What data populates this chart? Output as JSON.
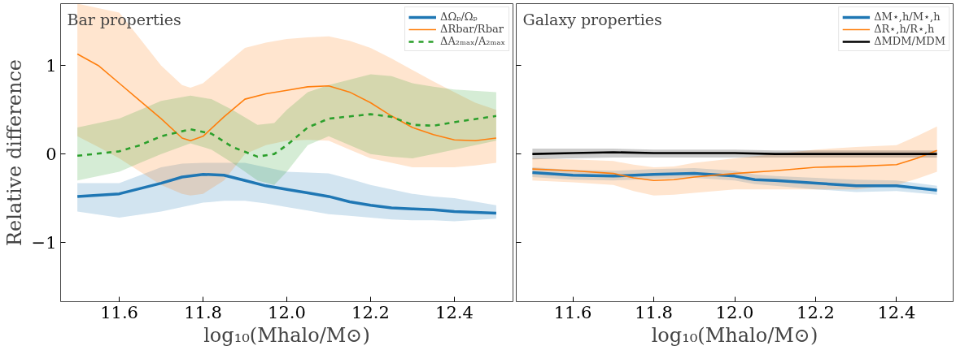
{
  "chart_data": [
    {
      "type": "line",
      "title": "Bar properties",
      "xlabel": "log₁₀(Mhalo/M⊙)",
      "ylabel": "Relative difference",
      "xlim": [
        11.46,
        12.54
      ],
      "ylim": [
        -1.67,
        1.7
      ],
      "xticks": [
        {
          "value": 11.6,
          "label": "11.6"
        },
        {
          "value": 11.8,
          "label": "11.8"
        },
        {
          "value": 12.0,
          "label": "12.0"
        },
        {
          "value": 12.2,
          "label": "12.2"
        },
        {
          "value": 12.4,
          "label": "12.4"
        }
      ],
      "yticks": [
        {
          "value": -1,
          "label": "−1"
        },
        0,
        1
      ],
      "grid": false,
      "legend": "top right",
      "series": [
        {
          "name": "ΔΩₚ/Ωₚ",
          "color": "#1f77b4",
          "line_style": "solid",
          "x": [
            11.5,
            11.6,
            11.7,
            11.75,
            11.8,
            11.85,
            11.9,
            11.95,
            12.0,
            12.05,
            12.1,
            12.15,
            12.2,
            12.25,
            12.3,
            12.35,
            12.4,
            12.5
          ],
          "values": [
            -0.48,
            -0.45,
            -0.33,
            -0.26,
            -0.23,
            -0.24,
            -0.3,
            -0.36,
            -0.4,
            -0.44,
            -0.48,
            -0.54,
            -0.58,
            -0.61,
            -0.62,
            -0.63,
            -0.65,
            -0.67
          ],
          "lower": [
            -0.65,
            -0.72,
            -0.65,
            -0.6,
            -0.55,
            -0.53,
            -0.53,
            -0.56,
            -0.6,
            -0.64,
            -0.68,
            -0.7,
            -0.72,
            -0.74,
            -0.75,
            -0.75,
            -0.76,
            -0.73
          ],
          "upper": [
            -0.33,
            -0.33,
            -0.15,
            -0.11,
            -0.1,
            -0.1,
            -0.1,
            -0.15,
            -0.2,
            -0.21,
            -0.22,
            -0.28,
            -0.35,
            -0.4,
            -0.45,
            -0.48,
            -0.5,
            -0.58
          ]
        },
        {
          "name": "ΔRbar/Rbar",
          "color": "#ff7f0e",
          "line_style": "solid",
          "x": [
            11.5,
            11.55,
            11.6,
            11.65,
            11.7,
            11.75,
            11.77,
            11.8,
            11.85,
            11.9,
            11.95,
            12.0,
            12.05,
            12.1,
            12.15,
            12.2,
            12.25,
            12.3,
            12.35,
            12.4,
            12.45,
            12.5
          ],
          "values": [
            1.13,
            1.0,
            0.8,
            0.6,
            0.4,
            0.18,
            0.15,
            0.2,
            0.42,
            0.62,
            0.68,
            0.72,
            0.76,
            0.77,
            0.7,
            0.58,
            0.43,
            0.3,
            0.22,
            0.16,
            0.15,
            0.18
          ],
          "lower": [
            0.2,
            0.08,
            -0.05,
            -0.2,
            -0.35,
            -0.45,
            -0.47,
            -0.45,
            -0.3,
            0.0,
            0.1,
            0.15,
            0.16,
            0.15,
            0.05,
            -0.05,
            -0.1,
            -0.15,
            -0.15,
            -0.15,
            -0.13,
            -0.1
          ],
          "upper": [
            1.7,
            1.65,
            1.6,
            1.3,
            1.0,
            0.78,
            0.75,
            0.8,
            1.0,
            1.2,
            1.26,
            1.3,
            1.32,
            1.33,
            1.28,
            1.2,
            1.08,
            0.95,
            0.82,
            0.7,
            0.58,
            0.5
          ]
        },
        {
          "name": "ΔA₂ₘₐₓ/A₂ₘₐₓ",
          "color": "#2ca02c",
          "line_style": "dashed",
          "x": [
            11.5,
            11.6,
            11.65,
            11.7,
            11.77,
            11.82,
            11.87,
            11.93,
            11.97,
            12.0,
            12.05,
            12.1,
            12.2,
            12.25,
            12.3,
            12.35,
            12.4,
            12.5
          ],
          "values": [
            -0.02,
            0.03,
            0.1,
            0.2,
            0.28,
            0.23,
            0.08,
            -0.03,
            0.0,
            0.1,
            0.3,
            0.4,
            0.45,
            0.42,
            0.33,
            0.32,
            0.36,
            0.43
          ],
          "lower": [
            -0.3,
            -0.2,
            -0.1,
            0.0,
            0.12,
            0.05,
            -0.1,
            -0.3,
            -0.35,
            -0.2,
            0.1,
            0.2,
            0.0,
            -0.03,
            -0.05,
            0.0,
            0.05,
            0.15
          ],
          "upper": [
            0.3,
            0.4,
            0.5,
            0.6,
            0.66,
            0.62,
            0.5,
            0.33,
            0.35,
            0.5,
            0.7,
            0.78,
            0.9,
            0.88,
            0.8,
            0.76,
            0.73,
            0.7
          ]
        }
      ]
    },
    {
      "type": "line",
      "title": "Galaxy properties",
      "xlabel": "log₁₀(Mhalo/M⊙)",
      "xlim": [
        11.46,
        12.54
      ],
      "ylim": [
        -1.67,
        1.7
      ],
      "xticks": [
        {
          "value": 11.6,
          "label": "11.6"
        },
        {
          "value": 11.8,
          "label": "11.8"
        },
        {
          "value": 12.0,
          "label": "12.0"
        },
        {
          "value": 12.2,
          "label": "12.2"
        },
        {
          "value": 12.4,
          "label": "12.4"
        }
      ],
      "yticks": [
        {
          "value": -1,
          "label": null
        },
        {
          "value": 0,
          "label": null
        },
        {
          "value": 1,
          "label": null
        }
      ],
      "tick_labels": "x",
      "grid": false,
      "legend": "top right",
      "series": [
        {
          "name": "ΔM⋆,h/M⋆,h",
          "color": "#1f77b4",
          "line_style": "solid",
          "x": [
            11.5,
            11.6,
            11.7,
            11.8,
            11.9,
            12.0,
            12.05,
            12.1,
            12.2,
            12.3,
            12.4,
            12.5
          ],
          "values": [
            -0.21,
            -0.24,
            -0.25,
            -0.23,
            -0.22,
            -0.25,
            -0.29,
            -0.3,
            -0.33,
            -0.36,
            -0.36,
            -0.41
          ],
          "lower": [
            -0.26,
            -0.29,
            -0.3,
            -0.28,
            -0.27,
            -0.3,
            -0.34,
            -0.36,
            -0.4,
            -0.43,
            -0.42,
            -0.46
          ],
          "upper": [
            -0.15,
            -0.18,
            -0.19,
            -0.17,
            -0.16,
            -0.19,
            -0.23,
            -0.25,
            -0.27,
            -0.29,
            -0.3,
            -0.36
          ]
        },
        {
          "name": "ΔR⋆,h/R⋆,h",
          "color": "#ff7f0e",
          "line_style": "solid",
          "x": [
            11.5,
            11.6,
            11.7,
            11.75,
            11.8,
            11.85,
            11.9,
            12.0,
            12.1,
            12.2,
            12.3,
            12.4,
            12.45,
            12.5
          ],
          "values": [
            -0.17,
            -0.19,
            -0.22,
            -0.27,
            -0.3,
            -0.29,
            -0.26,
            -0.22,
            -0.19,
            -0.15,
            -0.14,
            -0.12,
            -0.05,
            0.04
          ],
          "lower": [
            -0.3,
            -0.32,
            -0.35,
            -0.42,
            -0.47,
            -0.46,
            -0.44,
            -0.4,
            -0.4,
            -0.4,
            -0.4,
            -0.35,
            -0.28,
            -0.2
          ],
          "upper": [
            -0.05,
            -0.06,
            -0.08,
            -0.12,
            -0.15,
            -0.14,
            -0.1,
            -0.05,
            0.0,
            0.05,
            0.08,
            0.1,
            0.2,
            0.31
          ]
        },
        {
          "name": "ΔMDM/MDM",
          "color": "#000000",
          "line_style": "solid",
          "x": [
            11.5,
            11.6,
            11.7,
            11.8,
            11.9,
            12.0,
            12.1,
            12.2,
            12.3,
            12.4,
            12.5
          ],
          "values": [
            0.0,
            0.01,
            0.02,
            0.01,
            0.01,
            0.01,
            0.0,
            0.0,
            0.0,
            0.0,
            0.0
          ],
          "lower": [
            -0.06,
            -0.05,
            -0.04,
            -0.04,
            -0.04,
            -0.04,
            -0.04,
            -0.04,
            -0.04,
            -0.04,
            -0.04
          ],
          "upper": [
            0.06,
            0.06,
            0.06,
            0.05,
            0.05,
            0.05,
            0.04,
            0.04,
            0.04,
            0.04,
            0.04
          ]
        }
      ]
    }
  ]
}
